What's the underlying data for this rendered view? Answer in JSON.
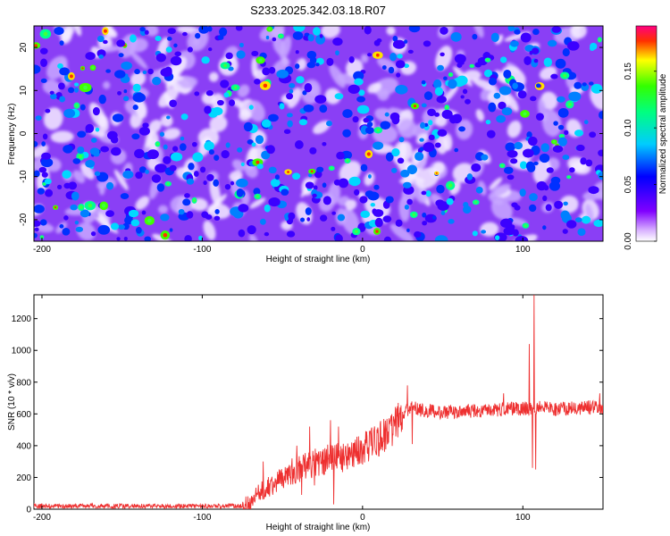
{
  "title": "S233.2025.342.03.18.R07",
  "chart_data": [
    {
      "type": "heatmap",
      "title": "S233.2025.342.03.18.R07",
      "xlabel": "Height of straight line (km)",
      "ylabel": "Frequency (Hz)",
      "xlim": [
        -205,
        150
      ],
      "ylim": [
        -25,
        25
      ],
      "xticks": [
        -200,
        -100,
        0,
        100
      ],
      "yticks": [
        -20,
        -10,
        0,
        10,
        20
      ],
      "grid": false,
      "colorbar": {
        "label": "Normalized spectral amplitude",
        "range": [
          0.0,
          0.19
        ],
        "ticks": [
          0.0,
          0.05,
          0.1,
          0.15
        ],
        "tick_labels": [
          "0.00",
          "0.05",
          "0.10",
          "0.15"
        ],
        "colormap": [
          "#ffffff",
          "#8000ff",
          "#0000ff",
          "#00ffff",
          "#00ff00",
          "#ffff00",
          "#ff0000",
          "#ff00aa"
        ]
      },
      "description_stats": {
        "background_amplitude": 0.03,
        "peak_amplitude": 0.19
      }
    },
    {
      "type": "line",
      "xlabel": "Height of straight line (km)",
      "ylabel": "SNR (10 * v/v)",
      "xlim": [
        -205,
        150
      ],
      "ylim": [
        0,
        1350
      ],
      "xticks": [
        -200,
        -100,
        0,
        100
      ],
      "yticks": [
        0,
        200,
        400,
        600,
        800,
        1000,
        1200
      ],
      "grid": false,
      "series": [
        {
          "name": "SNR",
          "color": "#ee3030",
          "anchor_x": [
            -205,
            -75,
            -70,
            -65,
            -60,
            -50,
            -40,
            -30,
            -20,
            -10,
            0,
            10,
            20,
            25,
            30,
            40,
            50,
            60,
            70,
            80,
            90,
            100,
            104,
            106,
            108,
            110,
            120,
            130,
            140,
            150
          ],
          "anchor_y": [
            20,
            20,
            30,
            90,
            130,
            190,
            250,
            290,
            320,
            330,
            380,
            440,
            520,
            600,
            640,
            620,
            610,
            615,
            620,
            625,
            630,
            635,
            630,
            650,
            620,
            640,
            630,
            635,
            640,
            640
          ],
          "spikes": [
            {
              "x": -62,
              "y": 300
            },
            {
              "x": -58,
              "y": 80
            },
            {
              "x": -44,
              "y": 320
            },
            {
              "x": -41,
              "y": 400
            },
            {
              "x": -38,
              "y": 90
            },
            {
              "x": -33,
              "y": 520
            },
            {
              "x": -30,
              "y": 150
            },
            {
              "x": -20,
              "y": 560
            },
            {
              "x": -18,
              "y": 30
            },
            {
              "x": -15,
              "y": 520
            },
            {
              "x": -5,
              "y": 420
            },
            {
              "x": 5,
              "y": 470
            },
            {
              "x": 15,
              "y": 520
            },
            {
              "x": 28,
              "y": 780
            },
            {
              "x": 31,
              "y": 410
            },
            {
              "x": 88,
              "y": 730
            },
            {
              "x": 104,
              "y": 1040
            },
            {
              "x": 106,
              "y": 260
            },
            {
              "x": 107,
              "y": 1350
            },
            {
              "x": 108,
              "y": 250
            },
            {
              "x": 148,
              "y": 730
            }
          ]
        }
      ]
    }
  ]
}
